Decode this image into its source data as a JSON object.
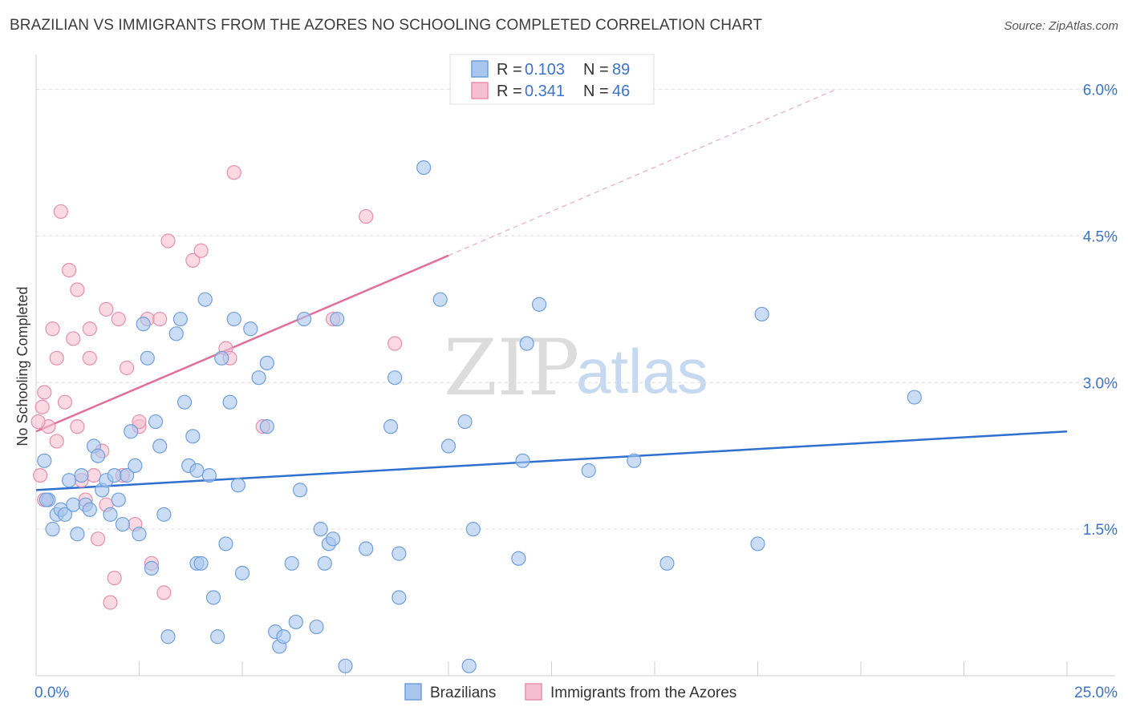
{
  "header": {
    "title": "BRAZILIAN VS IMMIGRANTS FROM THE AZORES NO SCHOOLING COMPLETED CORRELATION CHART",
    "source": "Source: ZipAtlas.com"
  },
  "watermark": {
    "zip": "ZIP",
    "atlas": "atlas"
  },
  "legend": {
    "rows": [
      {
        "r_label": "R = ",
        "r_value": "0.103",
        "n_label": "N = ",
        "n_value": "89"
      },
      {
        "r_label": "R = ",
        "r_value": "0.341",
        "n_label": "N = ",
        "n_value": "46"
      }
    ]
  },
  "bottom_legend": [
    "Brazilians",
    "Immigrants from the Azores"
  ],
  "chart_data": {
    "type": "scatter",
    "title": "BRAZILIAN VS IMMIGRANTS FROM THE AZORES NO SCHOOLING COMPLETED CORRELATION CHART",
    "xlabel": "",
    "ylabel": "No Schooling Completed",
    "xlim": [
      0,
      25
    ],
    "ylim": [
      0,
      6.3
    ],
    "x_tick_labels": [
      "0.0%",
      "25.0%"
    ],
    "y_ticks": [
      1.5,
      3.0,
      4.5,
      6.0
    ],
    "y_tick_labels": [
      "1.5%",
      "3.0%",
      "4.5%",
      "6.0%"
    ],
    "grid": true,
    "legend_position": "top-center",
    "colors": {
      "brazilians_fill": "#a9c7ee",
      "brazilians_stroke": "#6f9fdc",
      "brazilians_line": "#2f6fcf",
      "azores_fill": "#f6bfd1",
      "azores_stroke": "#e58fae",
      "azores_line": "#e0709a",
      "tick_label": "#3c73c8"
    },
    "series": [
      {
        "name": "Brazilians",
        "r": 0.103,
        "n": 89,
        "trend": {
          "x": [
            0,
            25
          ],
          "y": [
            1.9,
            2.5
          ]
        },
        "points": [
          [
            0.2,
            2.2
          ],
          [
            0.3,
            1.8
          ],
          [
            0.4,
            1.5
          ],
          [
            0.5,
            1.65
          ],
          [
            0.6,
            1.7
          ],
          [
            0.7,
            1.65
          ],
          [
            0.8,
            2.0
          ],
          [
            0.9,
            1.75
          ],
          [
            1.0,
            1.45
          ],
          [
            1.1,
            2.05
          ],
          [
            1.2,
            1.75
          ],
          [
            1.3,
            1.7
          ],
          [
            1.4,
            2.35
          ],
          [
            1.5,
            2.25
          ],
          [
            1.6,
            1.9
          ],
          [
            1.7,
            2.0
          ],
          [
            1.8,
            1.65
          ],
          [
            1.9,
            2.05
          ],
          [
            2.0,
            1.8
          ],
          [
            2.1,
            1.55
          ],
          [
            2.2,
            2.05
          ],
          [
            2.3,
            2.5
          ],
          [
            2.4,
            2.15
          ],
          [
            2.5,
            1.45
          ],
          [
            2.6,
            3.6
          ],
          [
            2.7,
            3.25
          ],
          [
            2.8,
            1.1
          ],
          [
            2.9,
            2.6
          ],
          [
            3.0,
            2.35
          ],
          [
            3.1,
            1.65
          ],
          [
            3.2,
            0.4
          ],
          [
            3.4,
            3.5
          ],
          [
            3.5,
            3.65
          ],
          [
            3.6,
            2.8
          ],
          [
            3.7,
            2.15
          ],
          [
            3.8,
            2.45
          ],
          [
            3.9,
            2.1
          ],
          [
            3.9,
            1.15
          ],
          [
            4.0,
            1.15
          ],
          [
            4.1,
            3.85
          ],
          [
            4.2,
            2.05
          ],
          [
            4.3,
            0.8
          ],
          [
            4.4,
            0.4
          ],
          [
            4.5,
            3.25
          ],
          [
            4.6,
            1.35
          ],
          [
            4.7,
            2.8
          ],
          [
            4.8,
            3.65
          ],
          [
            4.9,
            1.95
          ],
          [
            5.0,
            1.05
          ],
          [
            5.2,
            3.55
          ],
          [
            5.4,
            3.05
          ],
          [
            5.6,
            3.2
          ],
          [
            5.6,
            2.55
          ],
          [
            5.8,
            0.45
          ],
          [
            5.9,
            0.3
          ],
          [
            6.0,
            0.4
          ],
          [
            6.2,
            1.15
          ],
          [
            6.3,
            0.55
          ],
          [
            6.4,
            1.9
          ],
          [
            6.5,
            3.65
          ],
          [
            6.8,
            0.5
          ],
          [
            6.9,
            1.5
          ],
          [
            7.0,
            1.15
          ],
          [
            7.1,
            1.35
          ],
          [
            7.2,
            1.4
          ],
          [
            7.3,
            3.65
          ],
          [
            7.5,
            0.1
          ],
          [
            8.0,
            1.3
          ],
          [
            8.6,
            2.55
          ],
          [
            8.7,
            3.05
          ],
          [
            8.8,
            1.25
          ],
          [
            8.8,
            0.8
          ],
          [
            9.4,
            5.2
          ],
          [
            9.8,
            3.85
          ],
          [
            10.0,
            2.35
          ],
          [
            10.4,
            2.6
          ],
          [
            10.6,
            1.5
          ],
          [
            10.5,
            0.1
          ],
          [
            11.7,
            1.2
          ],
          [
            11.8,
            2.2
          ],
          [
            11.9,
            3.4
          ],
          [
            12.2,
            3.8
          ],
          [
            13.4,
            2.1
          ],
          [
            14.5,
            2.2
          ],
          [
            15.3,
            1.15
          ],
          [
            17.5,
            1.35
          ],
          [
            17.6,
            3.7
          ],
          [
            21.3,
            2.85
          ],
          [
            0.25,
            1.8
          ]
        ]
      },
      {
        "name": "Immigrants from the Azores",
        "r": 0.341,
        "n": 46,
        "trend": {
          "x": [
            0,
            10
          ],
          "y": [
            2.5,
            4.3
          ]
        },
        "trend_extension": {
          "x": [
            10,
            19.4
          ],
          "y": [
            4.3,
            6.0
          ]
        },
        "points": [
          [
            0.1,
            2.05
          ],
          [
            0.15,
            2.75
          ],
          [
            0.2,
            2.9
          ],
          [
            0.3,
            2.55
          ],
          [
            0.4,
            3.55
          ],
          [
            0.5,
            2.4
          ],
          [
            0.5,
            3.25
          ],
          [
            0.6,
            4.75
          ],
          [
            0.7,
            2.8
          ],
          [
            0.8,
            4.15
          ],
          [
            0.9,
            3.45
          ],
          [
            1.0,
            3.95
          ],
          [
            1.0,
            2.55
          ],
          [
            1.1,
            2.0
          ],
          [
            1.2,
            1.8
          ],
          [
            1.3,
            3.55
          ],
          [
            1.3,
            3.25
          ],
          [
            1.4,
            2.05
          ],
          [
            1.5,
            1.4
          ],
          [
            1.6,
            2.3
          ],
          [
            1.7,
            1.75
          ],
          [
            1.7,
            3.75
          ],
          [
            1.8,
            0.75
          ],
          [
            1.9,
            1.0
          ],
          [
            2.0,
            3.65
          ],
          [
            2.1,
            2.05
          ],
          [
            2.2,
            3.15
          ],
          [
            2.4,
            1.55
          ],
          [
            2.5,
            2.55
          ],
          [
            2.5,
            2.6
          ],
          [
            2.7,
            3.65
          ],
          [
            2.8,
            1.15
          ],
          [
            3.0,
            3.65
          ],
          [
            3.1,
            0.85
          ],
          [
            3.2,
            4.45
          ],
          [
            3.8,
            4.25
          ],
          [
            4.0,
            4.35
          ],
          [
            4.6,
            3.35
          ],
          [
            4.7,
            3.25
          ],
          [
            4.8,
            5.15
          ],
          [
            5.5,
            2.55
          ],
          [
            7.2,
            3.65
          ],
          [
            8.0,
            4.7
          ],
          [
            8.7,
            3.4
          ],
          [
            0.05,
            2.6
          ],
          [
            0.2,
            1.8
          ]
        ]
      }
    ]
  }
}
